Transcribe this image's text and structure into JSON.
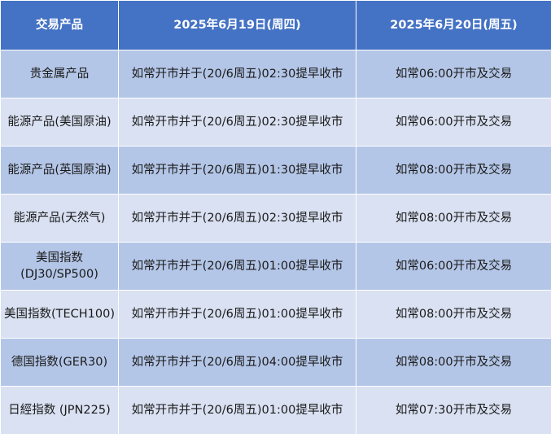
{
  "colors": {
    "header": "#4472C4",
    "row_dark": "#B4C6E7",
    "row_light": "#D9E1F2"
  },
  "headers": [
    "交易产品",
    "2025年6月19日(周四)",
    "2025年6月20日(周五)"
  ],
  "rows": [
    [
      "贵金属产品",
      "如常开市并于(20/6周五)02:30提早收市",
      "如常06:00开市及交易"
    ],
    [
      "能源产品(美国原油)",
      "如常开市并于(20/6周五)02:30提早收市",
      "如常06:00开市及交易"
    ],
    [
      "能源产品(英国原油)",
      "如常开市并于(20/6周五)01:30提早收市",
      "如常08:00开市及交易"
    ],
    [
      "能源产品(天然气)",
      "如常开市并于(20/6周五)02:30提早收市",
      "如常08:00开市及交易"
    ],
    [
      "美国指数(DJ30/SP500)",
      "如常开市并于(20/6周五)01:00提早收市",
      "如常06:00开市及交易"
    ],
    [
      "美国指数(TECH100)",
      "如常开市并于(20/6周五)01:00提早收市",
      "如常08:00开市及交易"
    ],
    [
      "德国指数(GER30)",
      "如常开市并于(20/6周五)04:00提早收市",
      "如常08:00开市及交易"
    ],
    [
      "日經指数 (JPN225)",
      "如常开市并于(20/6周五)01:00提早收市",
      "如常07:30开市及交易"
    ]
  ]
}
